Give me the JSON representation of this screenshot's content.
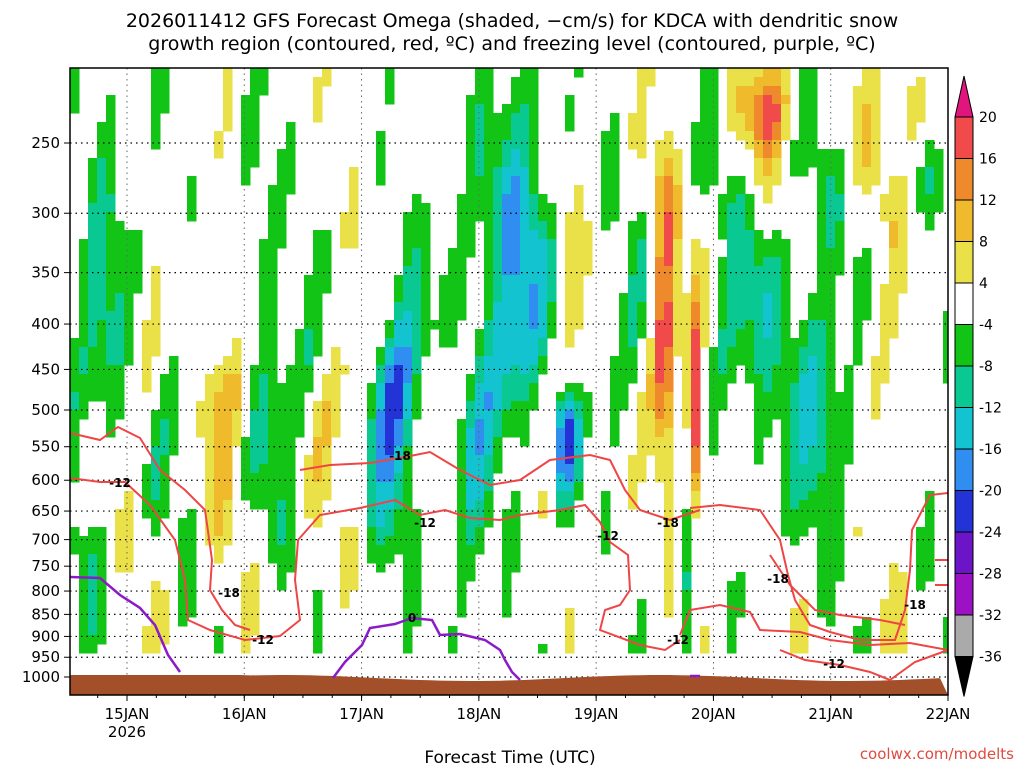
{
  "chart_data": {
    "type": "heatmap",
    "title_line1": "2026011412 GFS Forecast Omega (shaded, −cm/s) for KDCA with dendritic snow",
    "title_line2": "growth region (contoured, red, ºC) and freezing level (contoured, purple, ºC)",
    "xlabel": "Forecast Time (UTC)",
    "ylabel": "",
    "x_ticks": [
      "15JAN",
      "16JAN",
      "17JAN",
      "18JAN",
      "19JAN",
      "20JAN",
      "21JAN",
      "22JAN"
    ],
    "x_subtick": "2026",
    "x_range_days": [
      14.55,
      22.0
    ],
    "y_ticks": [
      250,
      300,
      350,
      400,
      450,
      500,
      550,
      600,
      650,
      700,
      750,
      800,
      850,
      900,
      950,
      1000
    ],
    "y_range_hpa": [
      1030,
      200
    ],
    "grid": "dotted",
    "colorbar": {
      "labels": [
        20,
        16,
        12,
        8,
        4,
        -4,
        -8,
        -12,
        -16,
        -20,
        -24,
        -28,
        -32,
        -36
      ],
      "colors": [
        "#e2157e",
        "#f04a4a",
        "#ee8a2c",
        "#f0ba2d",
        "#eae047",
        "#ffffff",
        "#11c416",
        "#0ac892",
        "#13c3d0",
        "#2f8ef0",
        "#2333d6",
        "#6b14c8",
        "#9c11c3",
        "#aaaaaa",
        "#000000"
      ]
    },
    "series": [
      {
        "name": "dendritic snow growth region (ºC)",
        "color": "#ef4545",
        "contour_labels": [
          "-18",
          "-12",
          "-12",
          "-18",
          "-12",
          "-18",
          "-12",
          "-12",
          "-18",
          "-12",
          "-18"
        ]
      },
      {
        "name": "freezing level (ºC)",
        "color": "#8b1bc8",
        "contour_labels": [
          "0"
        ]
      }
    ],
    "ground_color": "#a3502a",
    "credit": "coolwx.com/modelts"
  }
}
